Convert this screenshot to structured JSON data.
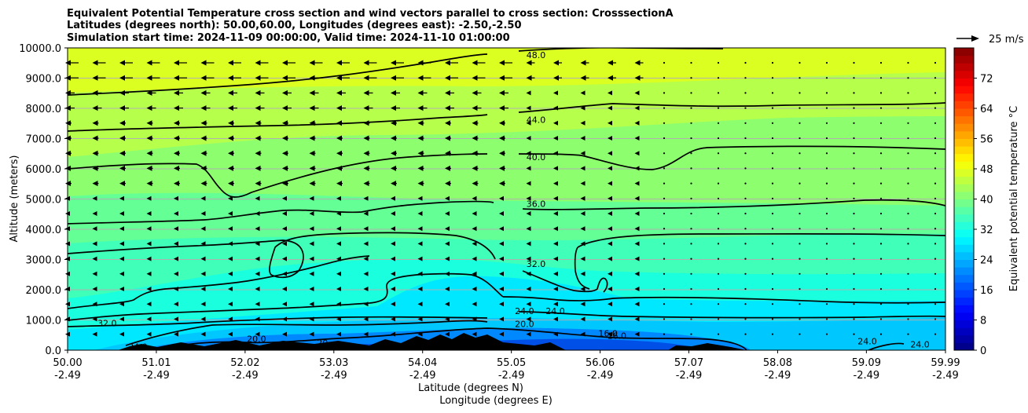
{
  "chart_data": {
    "type": "contour",
    "title_lines": [
      "Equivalent Potential Temperature cross section and wind vectors parallel to cross section: CrosssectionA",
      "Latitudes (degrees north): 50.00,60.00, Longitudes (degrees east): -2.50,-2.50",
      "Simulation start time: 2024-11-09 00:00:00, Valid time: 2024-11-10 01:00:00"
    ],
    "ylabel": "Altitude (meters)",
    "xlabel_lat": "Latitude (degrees N)",
    "xlabel_lon": "Longitude (degrees E)",
    "ylim": [
      0,
      10000
    ],
    "y_ticks": [
      0,
      1000,
      2000,
      3000,
      4000,
      5000,
      6000,
      7000,
      8000,
      9000,
      10000
    ],
    "y_tick_labels": [
      "0.0",
      "1000.0",
      "2000.0",
      "3000.0",
      "4000.0",
      "5000.0",
      "6000.0",
      "7000.0",
      "8000.0",
      "9000.0",
      "10000.0"
    ],
    "xlim": [
      50.0,
      59.99
    ],
    "x_ticks": [
      50.0,
      51.01,
      52.02,
      53.03,
      54.04,
      55.05,
      56.06,
      57.07,
      58.08,
      59.09,
      59.99
    ],
    "x_tick_lat_labels": [
      "50.00",
      "51.01",
      "52.02",
      "53.03",
      "54.04",
      "55.05",
      "56.06",
      "57.07",
      "58.08",
      "59.09",
      "59.99"
    ],
    "x_tick_lon_labels": [
      "-2.49",
      "-2.49",
      "-2.49",
      "-2.49",
      "-2.49",
      "-2.49",
      "-2.49",
      "-2.49",
      "-2.49",
      "-2.49",
      "-2.49"
    ],
    "grid": "horizontal",
    "colorbar": {
      "label": "Equivalent potential temperature °C",
      "range": [
        0,
        80
      ],
      "step": 2,
      "ticks": [
        0,
        8,
        16,
        24,
        32,
        40,
        48,
        56,
        64,
        72
      ],
      "tick_labels": [
        "0",
        "8",
        "16",
        "24",
        "32",
        "40",
        "48",
        "56",
        "64",
        "72"
      ]
    },
    "quiver_key": {
      "label": "25 m/s",
      "speed": 25
    },
    "contour_labels": [
      {
        "text": "48.0",
        "x": 55.33,
        "y": 9760
      },
      {
        "text": "44.0",
        "x": 55.33,
        "y": 7620
      },
      {
        "text": "40.0",
        "x": 55.33,
        "y": 6390
      },
      {
        "text": "36.0",
        "x": 55.33,
        "y": 4840
      },
      {
        "text": "32.0",
        "x": 55.33,
        "y": 2860
      },
      {
        "text": "24.0",
        "x": 55.2,
        "y": 1300
      },
      {
        "text": "24.0",
        "x": 55.55,
        "y": 1300
      },
      {
        "text": "20.0",
        "x": 55.2,
        "y": 870
      },
      {
        "text": "16.0",
        "x": 56.15,
        "y": 560
      },
      {
        "text": "16.0",
        "x": 56.25,
        "y": 480
      },
      {
        "text": "32.0",
        "x": 50.45,
        "y": 900
      },
      {
        "text": "24.0",
        "x": 50.8,
        "y": 120
      },
      {
        "text": "20.0",
        "x": 52.15,
        "y": 380
      },
      {
        "text": "20",
        "x": 52.9,
        "y": 250
      },
      {
        "text": "24.0",
        "x": 59.1,
        "y": 300
      },
      {
        "text": "24.0",
        "x": 59.7,
        "y": 200
      }
    ],
    "colors": {
      "top_band": "#e4ff1a",
      "upper_mid": "#b6ff4a",
      "mid": "#7fff7d",
      "lower_mid": "#4dffab",
      "low": "#18ffdb",
      "boundary": "#00d8ff",
      "surface": "#0066ff",
      "terrain": "#000000"
    }
  }
}
